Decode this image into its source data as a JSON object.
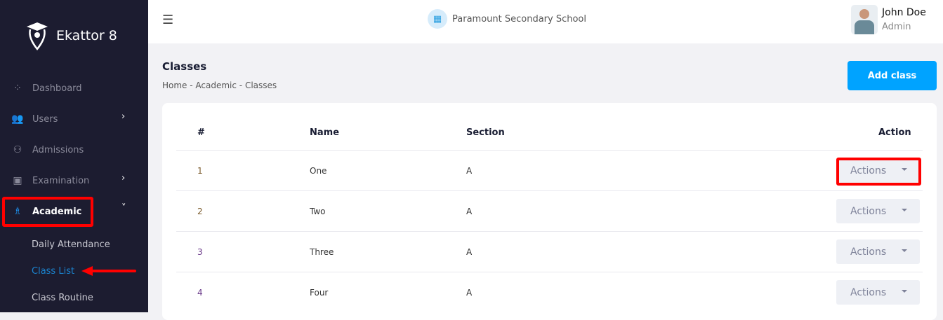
{
  "brand": {
    "name": "Ekattor 8"
  },
  "sidebar": {
    "items": [
      {
        "label": "Dashboard",
        "icon": "grid-icon"
      },
      {
        "label": "Users",
        "icon": "users-icon",
        "chevron": "›"
      },
      {
        "label": "Admissions",
        "icon": "user-plus-icon"
      },
      {
        "label": "Examination",
        "icon": "exam-icon",
        "chevron": "›"
      },
      {
        "label": "Academic",
        "icon": "academic-icon",
        "chevron": "˅"
      }
    ],
    "sub_items": [
      "Daily Attendance",
      "Class List",
      "Class Routine"
    ],
    "active_sub": "Class List"
  },
  "header": {
    "school": "Paramount Secondary School",
    "user_name": "John Doe",
    "user_role": "Admin"
  },
  "page": {
    "title": "Classes",
    "breadcrumb": [
      "Home",
      "Academic",
      "Classes"
    ],
    "add_label": "Add class"
  },
  "table": {
    "columns": [
      "#",
      "Name",
      "Section",
      "Action"
    ],
    "rows": [
      {
        "num": "1",
        "name": "One",
        "section": "A"
      },
      {
        "num": "2",
        "name": "Two",
        "section": "A"
      },
      {
        "num": "3",
        "name": "Three",
        "section": "A"
      },
      {
        "num": "4",
        "name": "Four",
        "section": "A"
      }
    ],
    "action_label": "Actions"
  },
  "colors": {
    "accent": "#00a3ff",
    "sidebar": "#1c1c30",
    "highlight": "#ff0000"
  }
}
